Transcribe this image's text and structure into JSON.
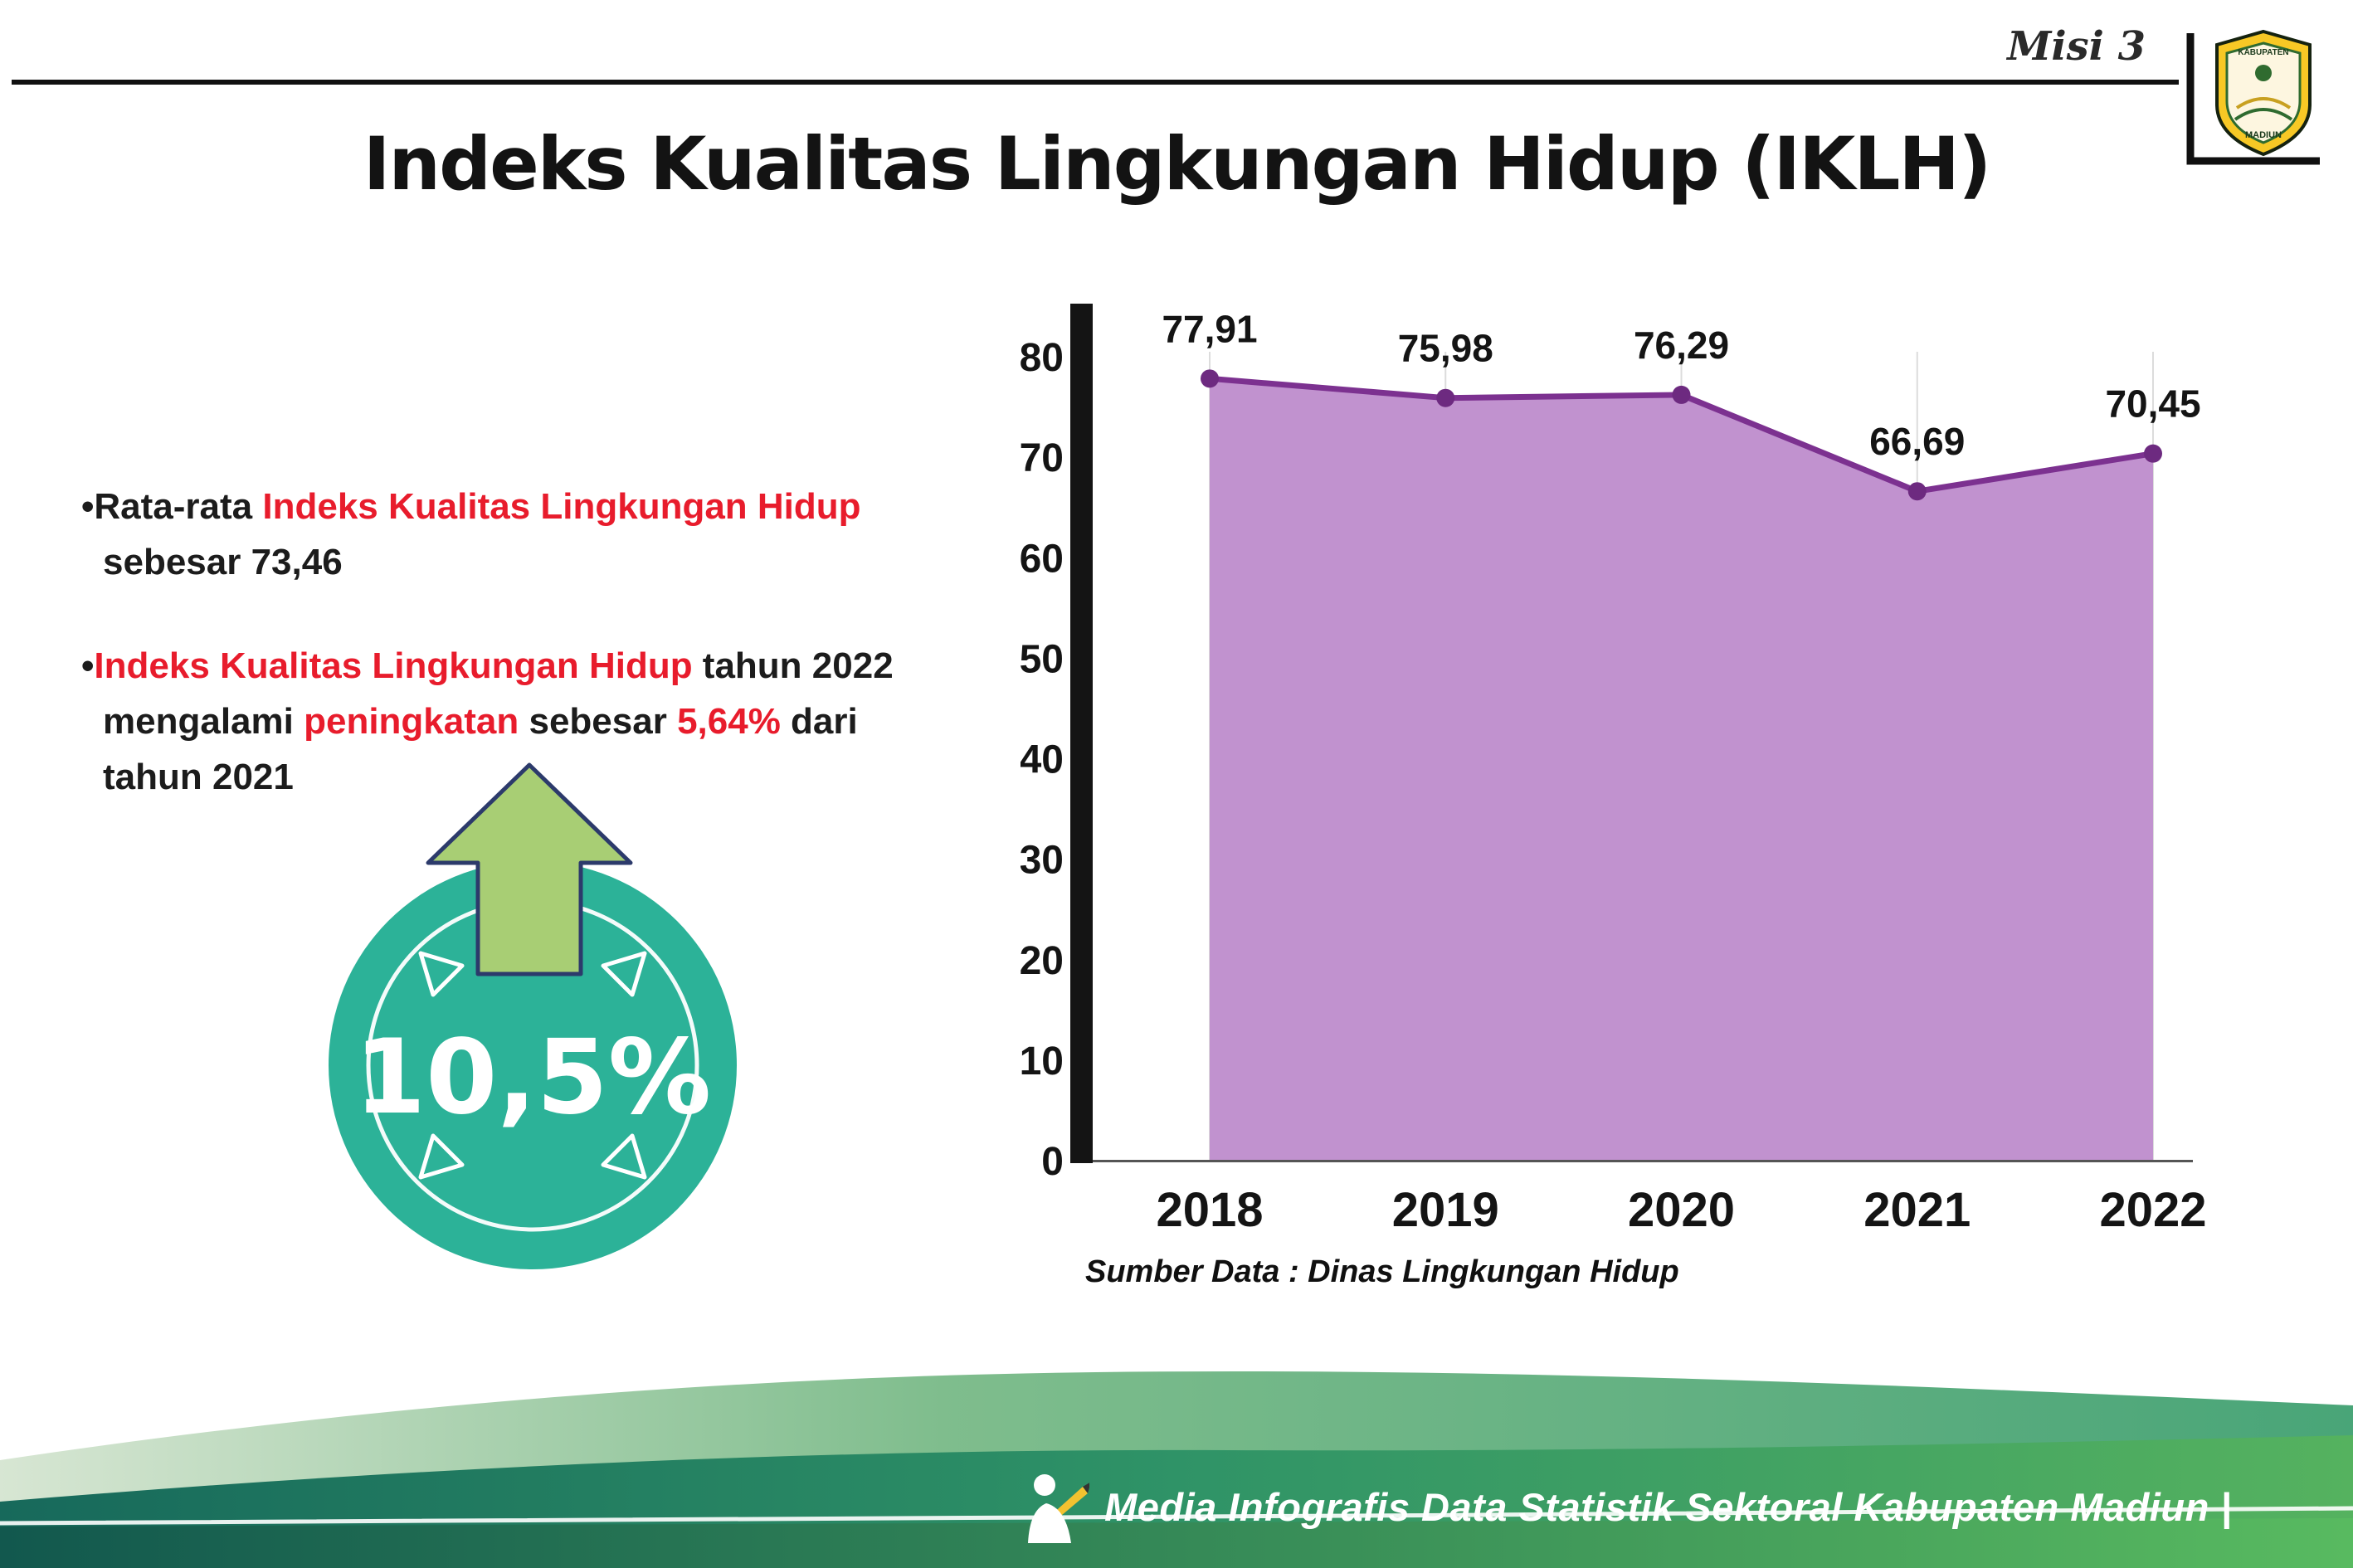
{
  "header": {
    "misi_label": "Misi 3",
    "logo": {
      "top_text": "KABUPATEN",
      "bottom_text": "MADIUN"
    }
  },
  "title": "Indeks Kualitas Lingkungan Hidup (IKLH)",
  "insights": {
    "bullet1": [
      [
        {
          "t": "•Rata-rata ",
          "c": "d"
        },
        {
          "t": "Indeks Kualitas Lingkungan Hidup",
          "c": "r"
        }
      ],
      [
        {
          "t": "sebesar 73,46",
          "c": "d"
        }
      ]
    ],
    "bullet2": [
      [
        {
          "t": "•",
          "c": "d"
        },
        {
          "t": "Indeks Kualitas Lingkungan Hidup",
          "c": "r"
        },
        {
          "t": " tahun 2022",
          "c": "d"
        }
      ],
      [
        {
          "t": "mengalami ",
          "c": "d"
        },
        {
          "t": "peningkatan",
          "c": "r"
        },
        {
          "t": " sebesar ",
          "c": "d"
        },
        {
          "t": "5,64%",
          "c": "r"
        },
        {
          "t": " dari",
          "c": "d"
        }
      ],
      [
        {
          "t": "tahun 2021",
          "c": "d"
        }
      ]
    ]
  },
  "badge": {
    "percent": "10,5%"
  },
  "chart_data": {
    "type": "area",
    "title": "Indeks Kualitas Lingkungan Hidup (IKLH)",
    "categories": [
      "2018",
      "2019",
      "2020",
      "2021",
      "2022"
    ],
    "values": [
      77.91,
      75.98,
      76.29,
      66.69,
      70.45
    ],
    "value_labels": [
      "77,91",
      "75,98",
      "76,29",
      "66,69",
      "70,45"
    ],
    "yticks": [
      0,
      10,
      20,
      30,
      40,
      50,
      60,
      70,
      80
    ],
    "ylim": [
      0,
      80
    ],
    "xlabel": "",
    "ylabel": "",
    "legend": "none",
    "grid": "vertical-light",
    "source": "Sumber Data : Dinas Lingkungan Hidup",
    "colors": {
      "area": "#c192cf",
      "line": "#7c3190",
      "dot": "#6d2a80",
      "grid": "#dcdcdc",
      "axis": "#141414"
    }
  },
  "footer": {
    "caption": "Media Infografis Data Statistik Sektoral Kabupaten Madiun |"
  },
  "accent_colors": {
    "red_text": "#e81c2c",
    "badge_teal": "#2cb298",
    "arrow_green": "#a8ce74",
    "footer_dark": "#17695b",
    "footer_green": "#55b25f"
  }
}
